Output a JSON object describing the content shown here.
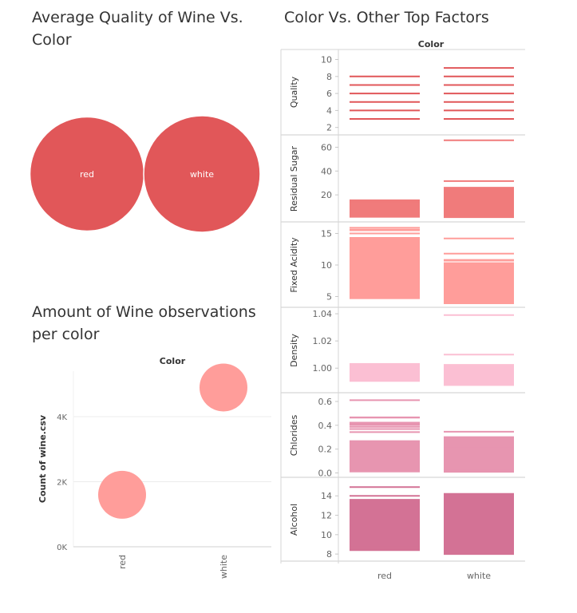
{
  "titles": {
    "bubble": "Average Quality of Wine Vs. Color",
    "strip": "Color Vs. Other Top Factors",
    "scatter": "Amount of Wine observations per color"
  },
  "colors": {
    "bubble": "#e15759",
    "scatter": "#ff9d9a",
    "quality": "#e15759",
    "residual_sugar": "#f07b7b",
    "fixed_acidity": "#ff9d9a",
    "density": "#fbbfd3",
    "chlorides": "#e795b0",
    "alcohol": "#d37295",
    "grid": "#ececec",
    "axis_text": "#666666",
    "border": "#d6d6d6"
  },
  "chart_data": [
    {
      "type": "bubble",
      "title": "Average Quality of Wine Vs. Color",
      "categories": [
        "red",
        "white"
      ],
      "values": [
        5.64,
        5.88
      ]
    },
    {
      "type": "scatter",
      "title": "Amount of Wine observations per color",
      "header": "Color",
      "ylabel": "Count of wine.csv",
      "categories": [
        "red",
        "white"
      ],
      "values": [
        1599,
        4898
      ],
      "yticks": [
        0,
        2000,
        4000
      ],
      "ytick_labels": [
        "0K",
        "2K",
        "4K"
      ],
      "ylim": [
        0,
        5400
      ],
      "grid": true
    },
    {
      "type": "strip",
      "title": "Color Vs. Other Top Factors",
      "header": "Color",
      "categories": [
        "red",
        "white"
      ],
      "panels": [
        {
          "name": "Quality",
          "key": "quality",
          "ylim": [
            1.5,
            10.8
          ],
          "yticks": [
            2,
            4,
            6,
            8,
            10
          ],
          "ytick_labels": [
            "2",
            "4",
            "6",
            "8",
            "10"
          ],
          "lines": [
            [
              3,
              4,
              5,
              6,
              7,
              8
            ],
            [
              3,
              4,
              5,
              6,
              7,
              8,
              9
            ]
          ],
          "bands": [
            [],
            []
          ]
        },
        {
          "name": "Residual Sugar",
          "key": "residual_sugar",
          "ylim": [
            0,
            67
          ],
          "yticks": [
            20,
            40,
            60
          ],
          "ytick_labels": [
            "20",
            "40",
            "60"
          ],
          "lines": [
            [
              15.5,
              13.9,
              12.9
            ],
            [
              65.8,
              31.6,
              26.05,
              23.5,
              22
            ]
          ],
          "bands": [
            [
              0.9,
              15.5
            ],
            [
              0.6,
              26
            ]
          ]
        },
        {
          "name": "Fixed Acidity",
          "key": "fixed_acidity",
          "ylim": [
            3.8,
            16.2
          ],
          "yticks": [
            5,
            10,
            15
          ],
          "ytick_labels": [
            "5",
            "10",
            "15"
          ],
          "lines": [
            [
              15.9,
              15.6,
              15.5,
              15,
              14.3
            ],
            [
              14.2,
              11.8,
              10.8,
              10.7,
              10.3
            ]
          ],
          "bands": [
            [
              4.6,
              14.3
            ],
            [
              3.8,
              10.3
            ]
          ]
        },
        {
          "name": "Density",
          "key": "density",
          "ylim": [
            0.9843,
            1.0418
          ],
          "yticks": [
            1.0,
            1.02,
            1.04
          ],
          "ytick_labels": [
            "1.00",
            "1.02",
            "1.04"
          ],
          "lines": [
            [],
            [
              1.039,
              1.01
            ]
          ],
          "bands": [
            [
              0.99,
              1.0037
            ],
            [
              0.987,
              1.003
            ]
          ]
        },
        {
          "name": "Chlorides",
          "key": "chlorides",
          "ylim": [
            -0.01,
            0.64
          ],
          "yticks": [
            0.0,
            0.2,
            0.4,
            0.6
          ],
          "ytick_labels": [
            "0.0",
            "0.2",
            "0.4",
            "0.6"
          ],
          "lines": [
            [
              0.611,
              0.467,
              0.464,
              0.422,
              0.415,
              0.403,
              0.387,
              0.369,
              0.343,
              0.267,
              0.02,
              0.012
            ],
            [
              0.346,
              0.301,
              0.29,
              0.27,
              0.25,
              0.24,
              0.21,
              0.019,
              0.009
            ]
          ],
          "bands": [
            [
              0.02,
              0.267
            ],
            [
              0.015,
              0.29
            ]
          ]
        },
        {
          "name": "Alcohol",
          "key": "alcohol",
          "ylim": [
            7.6,
            15.5
          ],
          "yticks": [
            8,
            10,
            12,
            14
          ],
          "ytick_labels": [
            "8",
            "10",
            "12",
            "14"
          ],
          "lines": [
            [
              14.9,
              14,
              13.6,
              8.7,
              8.5,
              8.4
            ],
            [
              14.2,
              8.0
            ]
          ],
          "bands": [
            [
              8.4,
              13.6
            ],
            [
              8.0,
              14.2
            ]
          ]
        }
      ]
    }
  ]
}
